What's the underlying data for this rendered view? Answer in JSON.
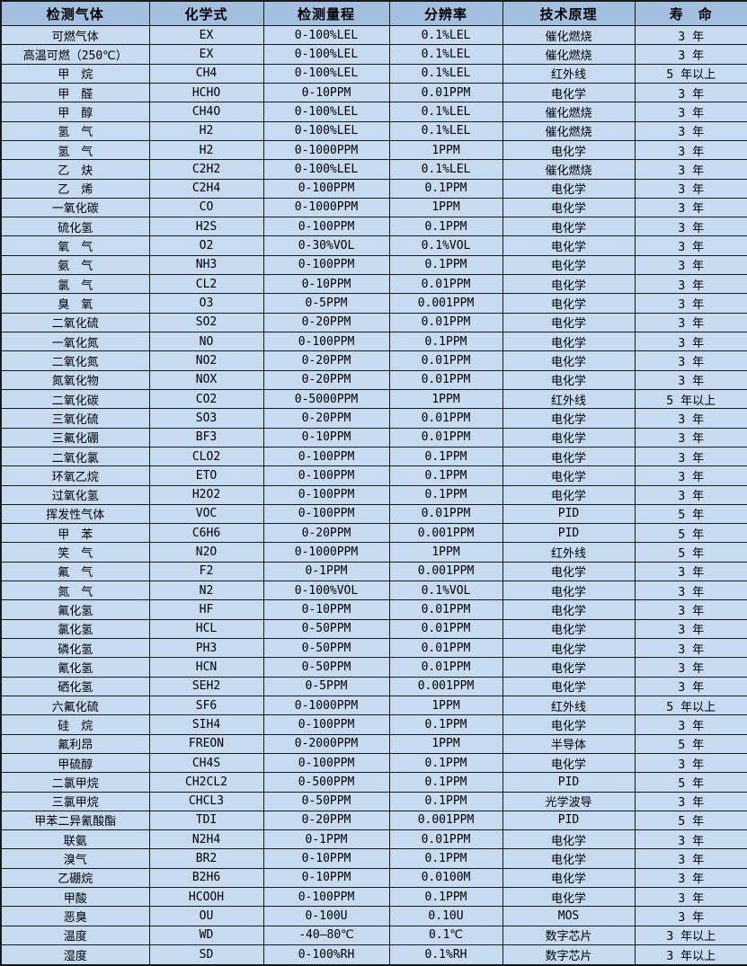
{
  "colors": {
    "header_bg": "#a3bfe0",
    "row_bg": "#c6daf0",
    "border": "#1a1a1a",
    "text": "#000000"
  },
  "table": {
    "columns": [
      {
        "key": "gas",
        "label": "检测气体"
      },
      {
        "key": "formula",
        "label": "化学式"
      },
      {
        "key": "range",
        "label": "检测量程"
      },
      {
        "key": "resolution",
        "label": "分辨率"
      },
      {
        "key": "principle",
        "label": "技术原理"
      },
      {
        "key": "lifespan",
        "label": "寿　命"
      }
    ],
    "rows": [
      [
        "可燃气体",
        "EX",
        "0-100%LEL",
        "0.1%LEL",
        "催化燃烧",
        "3 年"
      ],
      [
        "高温可燃（250℃）",
        "EX",
        "0-100%LEL",
        "0.1%LEL",
        "催化燃烧",
        "3 年"
      ],
      [
        "甲　烷",
        "CH4",
        "0-100%LEL",
        "0.1%LEL",
        "红外线",
        "5 年以上"
      ],
      [
        "甲　醛",
        "HCHO",
        "0-10PPM",
        "0.01PPM",
        "电化学",
        "3 年"
      ],
      [
        "甲　醇",
        "CH4O",
        "0-100%LEL",
        "0.1%LEL",
        "催化燃烧",
        "3 年"
      ],
      [
        "氢　气",
        "H2",
        "0-100%LEL",
        "0.1%LEL",
        "催化燃烧",
        "3 年"
      ],
      [
        "氢　气",
        "H2",
        "0-1000PPM",
        "1PPM",
        "电化学",
        "3 年"
      ],
      [
        "乙　炔",
        "C2H2",
        "0-100%LEL",
        "0.1%LEL",
        "催化燃烧",
        "3 年"
      ],
      [
        "乙　烯",
        "C2H4",
        "0-100PPM",
        "0.1PPM",
        "电化学",
        "3 年"
      ],
      [
        "一氧化碳",
        "CO",
        "0-1000PPM",
        "1PPM",
        "电化学",
        "3 年"
      ],
      [
        "硫化氢",
        "H2S",
        "0-100PPM",
        "0.1PPM",
        "电化学",
        "3 年"
      ],
      [
        "氧　气",
        "O2",
        "0-30%VOL",
        "0.1%VOL",
        "电化学",
        "3 年"
      ],
      [
        "氨　气",
        "NH3",
        "0-100PPM",
        "0.1PPM",
        "电化学",
        "3 年"
      ],
      [
        "氯　气",
        "CL2",
        "0-10PPM",
        "0.01PPM",
        "电化学",
        "3 年"
      ],
      [
        "臭　氧",
        "O3",
        "0-5PPM",
        "0.001PPM",
        "电化学",
        "3 年"
      ],
      [
        "二氧化硫",
        "SO2",
        "0-20PPM",
        "0.01PPM",
        "电化学",
        "3 年"
      ],
      [
        "一氧化氮",
        "NO",
        "0-100PPM",
        "0.1PPM",
        "电化学",
        "3 年"
      ],
      [
        "二氧化氮",
        "NO2",
        "0-20PPM",
        "0.01PPM",
        "电化学",
        "3 年"
      ],
      [
        "氮氧化物",
        "NOX",
        "0-20PPM",
        "0.01PPM",
        "电化学",
        "3 年"
      ],
      [
        "二氧化碳",
        "CO2",
        "0-5000PPM",
        "1PPM",
        "红外线",
        "5 年以上"
      ],
      [
        "三氧化硫",
        "SO3",
        "0-20PPM",
        "0.01PPM",
        "电化学",
        "3 年"
      ],
      [
        "三氟化硼",
        "BF3",
        "0-10PPM",
        "0.01PPM",
        "电化学",
        "3 年"
      ],
      [
        "二氧化氯",
        "CLO2",
        "0-100PPM",
        "0.1PPM",
        "电化学",
        "3 年"
      ],
      [
        "环氧乙烷",
        "ETO",
        "0-100PPM",
        "0.1PPM",
        "电化学",
        "3 年"
      ],
      [
        "过氧化氢",
        "H2O2",
        "0-100PPM",
        "0.1PPM",
        "电化学",
        "3 年"
      ],
      [
        "挥发性气体",
        "VOC",
        "0-100PPM",
        "0.01PPM",
        "PID",
        "5 年"
      ],
      [
        "甲　苯",
        "C6H6",
        "0-20PPM",
        "0.001PPM",
        "PID",
        "5 年"
      ],
      [
        "笑　气",
        "N2O",
        "0-1000PPM",
        "1PPM",
        "红外线",
        "5 年"
      ],
      [
        "氟　气",
        "F2",
        "0-1PPM",
        "0.001PPM",
        "电化学",
        "3 年"
      ],
      [
        "氮　气",
        "N2",
        "0-100%VOL",
        "0.1%VOL",
        "电化学",
        "3 年"
      ],
      [
        "氟化氢",
        "HF",
        "0-10PPM",
        "0.01PPM",
        "电化学",
        "3 年"
      ],
      [
        "氯化氢",
        "HCL",
        "0-50PPM",
        "0.01PPM",
        "电化学",
        "3 年"
      ],
      [
        "磷化氢",
        "PH3",
        "0-50PPM",
        "0.01PPM",
        "电化学",
        "3 年"
      ],
      [
        "氰化氢",
        "HCN",
        "0-50PPM",
        "0.01PPM",
        "电化学",
        "3 年"
      ],
      [
        "硒化氢",
        "SEH2",
        "0-5PPM",
        "0.001PPM",
        "电化学",
        "3 年"
      ],
      [
        "六氟化硫",
        "SF6",
        "0-1000PPM",
        "1PPM",
        "红外线",
        "5 年以上"
      ],
      [
        "硅　烷",
        "SIH4",
        "0-100PPM",
        "0.1PPM",
        "电化学",
        "3 年"
      ],
      [
        "氟利昂",
        "FREON",
        "0-2000PPM",
        "1PPM",
        "半导体",
        "5 年"
      ],
      [
        "甲硫醇",
        "CH4S",
        "0-100PPM",
        "0.1PPM",
        "电化学",
        "3 年"
      ],
      [
        "二氯甲烷",
        "CH2CL2",
        "0-500PPM",
        "0.1PPM",
        "PID",
        "5 年"
      ],
      [
        "三氯甲烷",
        "CHCL3",
        "0-50PPM",
        "0.1PPM",
        "光学波导",
        "3 年"
      ],
      [
        "甲苯二异氰酸酯",
        "TDI",
        "0-20PPM",
        "0.001PPM",
        "PID",
        "5 年"
      ],
      [
        "联氨",
        "N2H4",
        "0-1PPM",
        "0.01PPM",
        "电化学",
        "3 年"
      ],
      [
        "溴气",
        "BR2",
        "0-10PPM",
        "0.1PPM",
        "电化学",
        "3 年"
      ],
      [
        "乙硼烷",
        "B2H6",
        "0-10PPM",
        "0.0100M",
        "电化学",
        "3 年"
      ],
      [
        "甲酸",
        "HCOOH",
        "0-100PPM",
        "0.1PPM",
        "电化学",
        "3 年"
      ],
      [
        "恶臭",
        "OU",
        "0-100U",
        "0.10U",
        "MOS",
        "3 年"
      ],
      [
        "温度",
        "WD",
        "-40—80℃",
        "0.1℃",
        "数字芯片",
        "3 年以上"
      ],
      [
        "湿度",
        "SD",
        "0-100%RH",
        "0.1%RH",
        "数字芯片",
        "3 年以上"
      ]
    ]
  }
}
